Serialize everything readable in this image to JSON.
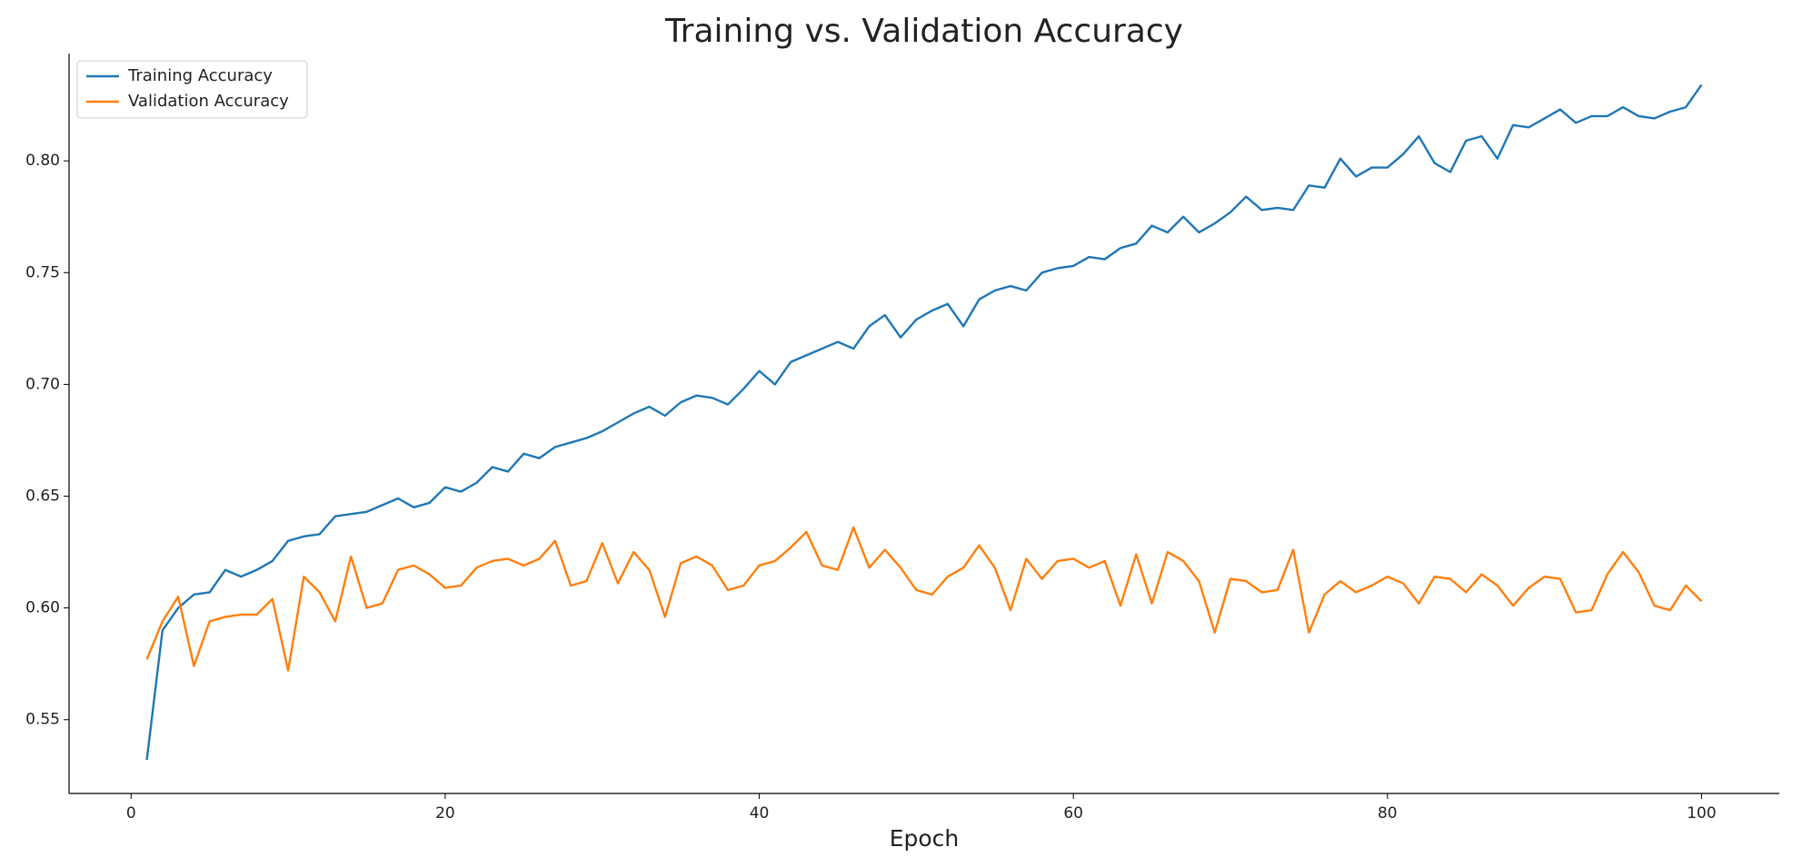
{
  "chart_data": {
    "type": "line",
    "title": "Training vs. Validation Accuracy",
    "x_label": "Epoch",
    "x": [
      1,
      2,
      3,
      4,
      5,
      6,
      7,
      8,
      9,
      10,
      11,
      12,
      13,
      14,
      15,
      16,
      17,
      18,
      19,
      20,
      21,
      22,
      23,
      24,
      25,
      26,
      27,
      28,
      29,
      30,
      31,
      32,
      33,
      34,
      35,
      36,
      37,
      38,
      39,
      40,
      41,
      42,
      43,
      44,
      45,
      46,
      47,
      48,
      49,
      50,
      51,
      52,
      53,
      54,
      55,
      56,
      57,
      58,
      59,
      60,
      61,
      62,
      63,
      64,
      65,
      66,
      67,
      68,
      69,
      70,
      71,
      72,
      73,
      74,
      75,
      76,
      77,
      78,
      79,
      80,
      81,
      82,
      83,
      84,
      85,
      86,
      87,
      88,
      89,
      90,
      91,
      92,
      93,
      94,
      95,
      96,
      97,
      98,
      99,
      100
    ],
    "series": [
      {
        "name": "Training Accuracy",
        "color": "#1f77b4",
        "values": [
          0.532,
          0.59,
          0.6,
          0.606,
          0.607,
          0.617,
          0.614,
          0.617,
          0.621,
          0.63,
          0.632,
          0.633,
          0.641,
          0.642,
          0.643,
          0.646,
          0.649,
          0.645,
          0.647,
          0.654,
          0.652,
          0.656,
          0.663,
          0.661,
          0.669,
          0.667,
          0.672,
          0.674,
          0.676,
          0.679,
          0.683,
          0.687,
          0.69,
          0.686,
          0.692,
          0.695,
          0.694,
          0.691,
          0.698,
          0.706,
          0.7,
          0.71,
          0.713,
          0.716,
          0.719,
          0.716,
          0.726,
          0.731,
          0.721,
          0.729,
          0.733,
          0.736,
          0.726,
          0.738,
          0.742,
          0.744,
          0.742,
          0.75,
          0.752,
          0.753,
          0.757,
          0.756,
          0.761,
          0.763,
          0.771,
          0.768,
          0.775,
          0.768,
          0.772,
          0.777,
          0.784,
          0.778,
          0.779,
          0.778,
          0.789,
          0.788,
          0.801,
          0.793,
          0.797,
          0.797,
          0.803,
          0.811,
          0.799,
          0.795,
          0.809,
          0.811,
          0.801,
          0.816,
          0.815,
          0.819,
          0.823,
          0.817,
          0.82,
          0.82,
          0.824,
          0.82,
          0.819,
          0.822,
          0.824,
          0.834
        ]
      },
      {
        "name": "Validation Accuracy",
        "color": "#ff7f0e",
        "values": [
          0.577,
          0.594,
          0.605,
          0.574,
          0.594,
          0.596,
          0.597,
          0.597,
          0.604,
          0.572,
          0.614,
          0.607,
          0.594,
          0.623,
          0.6,
          0.602,
          0.617,
          0.619,
          0.615,
          0.609,
          0.61,
          0.618,
          0.621,
          0.622,
          0.619,
          0.622,
          0.63,
          0.61,
          0.612,
          0.629,
          0.611,
          0.625,
          0.617,
          0.596,
          0.62,
          0.623,
          0.619,
          0.608,
          0.61,
          0.619,
          0.621,
          0.627,
          0.634,
          0.619,
          0.617,
          0.636,
          0.618,
          0.626,
          0.618,
          0.608,
          0.606,
          0.614,
          0.618,
          0.628,
          0.618,
          0.599,
          0.622,
          0.613,
          0.621,
          0.622,
          0.618,
          0.621,
          0.601,
          0.624,
          0.602,
          0.625,
          0.621,
          0.612,
          0.589,
          0.613,
          0.612,
          0.607,
          0.608,
          0.626,
          0.589,
          0.606,
          0.612,
          0.607,
          0.61,
          0.614,
          0.611,
          0.602,
          0.614,
          0.613,
          0.607,
          0.615,
          0.61,
          0.601,
          0.609,
          0.614,
          0.613,
          0.598,
          0.599,
          0.615,
          0.625,
          0.616,
          0.601,
          0.599,
          0.61,
          0.603
        ]
      }
    ],
    "xlim": [
      -3.95,
      104.95
    ],
    "xticks": [
      0,
      20,
      40,
      60,
      80,
      100
    ],
    "ylim": [
      0.517,
      0.848
    ],
    "yticks": [
      0.55,
      {
        "value": 0.6,
        "label": "0.60"
      },
      0.65,
      {
        "value": 0.7,
        "label": "0.70"
      },
      0.75,
      {
        "value": 0.8,
        "label": "0.80"
      }
    ],
    "legend": "upper left",
    "grid": false
  }
}
